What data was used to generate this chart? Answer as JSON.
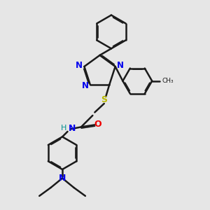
{
  "bg_color": "#e6e6e6",
  "bond_color": "#1a1a1a",
  "N_color": "#0000ee",
  "S_color": "#bbbb00",
  "O_color": "#ee0000",
  "H_color": "#009090",
  "figsize": [
    3.0,
    3.0
  ],
  "dpi": 100,
  "xlim": [
    0,
    10
  ],
  "ylim": [
    0,
    10
  ]
}
